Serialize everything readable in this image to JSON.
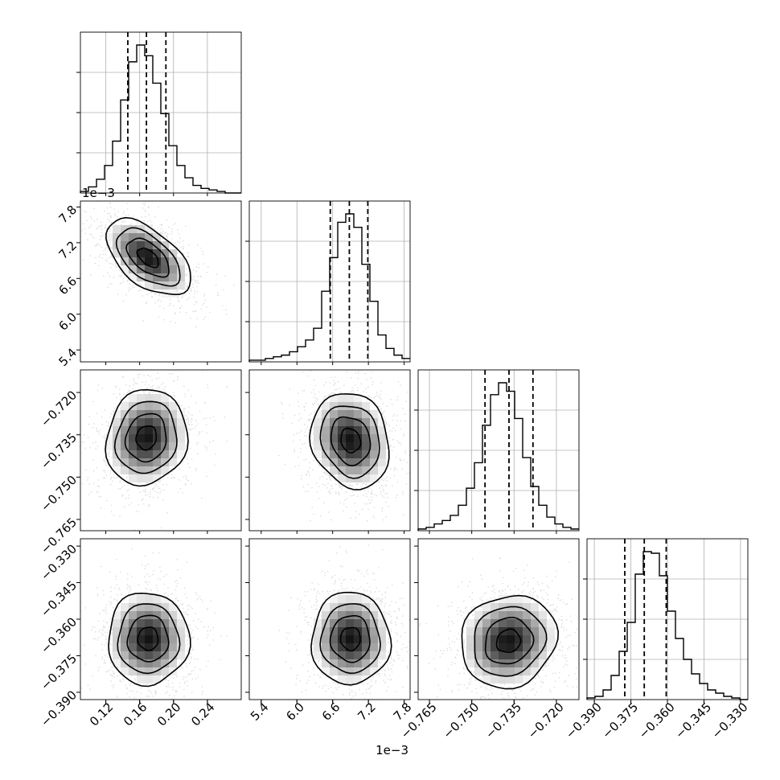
{
  "chart_data": {
    "type": "corner",
    "grid": true,
    "parameters": [
      {
        "index": 0,
        "range": [
          0.09,
          0.28
        ],
        "ticks": [
          "0.12",
          "0.16",
          "0.20",
          "0.24"
        ],
        "tick_values": [
          0.12,
          0.16,
          0.2,
          0.24
        ],
        "quantiles": [
          0.146,
          0.168,
          0.191
        ],
        "offset_text": ""
      },
      {
        "index": 1,
        "range": [
          5.2,
          7.9
        ],
        "ticks": [
          "5.4",
          "6.0",
          "6.6",
          "7.2",
          "7.8"
        ],
        "tick_values": [
          5.4,
          6.0,
          6.6,
          7.2,
          7.8
        ],
        "quantiles": [
          6.56,
          6.88,
          7.19
        ],
        "offset_text": "1e−3"
      },
      {
        "index": 2,
        "range": [
          -0.769,
          -0.712
        ],
        "ticks": [
          "−0.765",
          "−0.750",
          "−0.735",
          "−0.720"
        ],
        "tick_values": [
          -0.765,
          -0.75,
          -0.735,
          -0.72
        ],
        "quantiles": [
          -0.7453,
          -0.7368,
          -0.7283
        ],
        "offset_text": ""
      },
      {
        "index": 3,
        "range": [
          -0.393,
          -0.327
        ],
        "ticks": [
          "−0.390",
          "−0.375",
          "−0.360",
          "−0.345",
          "−0.330"
        ],
        "tick_values": [
          -0.39,
          -0.375,
          -0.36,
          -0.345,
          -0.33
        ],
        "quantiles": [
          -0.3775,
          -0.3695,
          -0.3605
        ],
        "offset_text": ""
      }
    ],
    "histograms": [
      {
        "param": 0,
        "counts": [
          1,
          4,
          9,
          18,
          34,
          61,
          86,
          97,
          90,
          72,
          52,
          31,
          18,
          10,
          5,
          3,
          2,
          1,
          0,
          0
        ]
      },
      {
        "param": 1,
        "counts": [
          1,
          1,
          2,
          3,
          4,
          6,
          9,
          13,
          20,
          42,
          62,
          83,
          88,
          80,
          58,
          36,
          16,
          8,
          4,
          2
        ]
      },
      {
        "param": 2,
        "counts": [
          1,
          2,
          4,
          6,
          9,
          15,
          25,
          40,
          62,
          80,
          87,
          82,
          66,
          43,
          26,
          15,
          8,
          4,
          2,
          1
        ]
      },
      {
        "param": 3,
        "counts": [
          1,
          2,
          6,
          15,
          30,
          48,
          78,
          92,
          91,
          77,
          55,
          38,
          25,
          16,
          10,
          6,
          4,
          2,
          1,
          0
        ]
      }
    ],
    "pairs": [
      {
        "x": 0,
        "y": 1,
        "mean": [
          0.17,
          6.95
        ],
        "std": [
          0.025,
          0.32
        ],
        "corr": -0.55
      },
      {
        "x": 0,
        "y": 2,
        "mean": [
          0.168,
          -0.736
        ],
        "std": [
          0.024,
          0.0085
        ],
        "corr": 0.1
      },
      {
        "x": 1,
        "y": 2,
        "mean": [
          6.9,
          -0.737
        ],
        "std": [
          0.33,
          0.0085
        ],
        "corr": -0.15
      },
      {
        "x": 0,
        "y": 3,
        "mean": [
          0.17,
          -0.368
        ],
        "std": [
          0.024,
          0.0095
        ],
        "corr": 0.0
      },
      {
        "x": 1,
        "y": 3,
        "mean": [
          6.9,
          -0.368
        ],
        "std": [
          0.33,
          0.0095
        ],
        "corr": 0.0
      },
      {
        "x": 2,
        "y": 3,
        "mean": [
          -0.737,
          -0.369
        ],
        "std": [
          0.0085,
          0.0095
        ],
        "corr": 0.1
      }
    ]
  }
}
